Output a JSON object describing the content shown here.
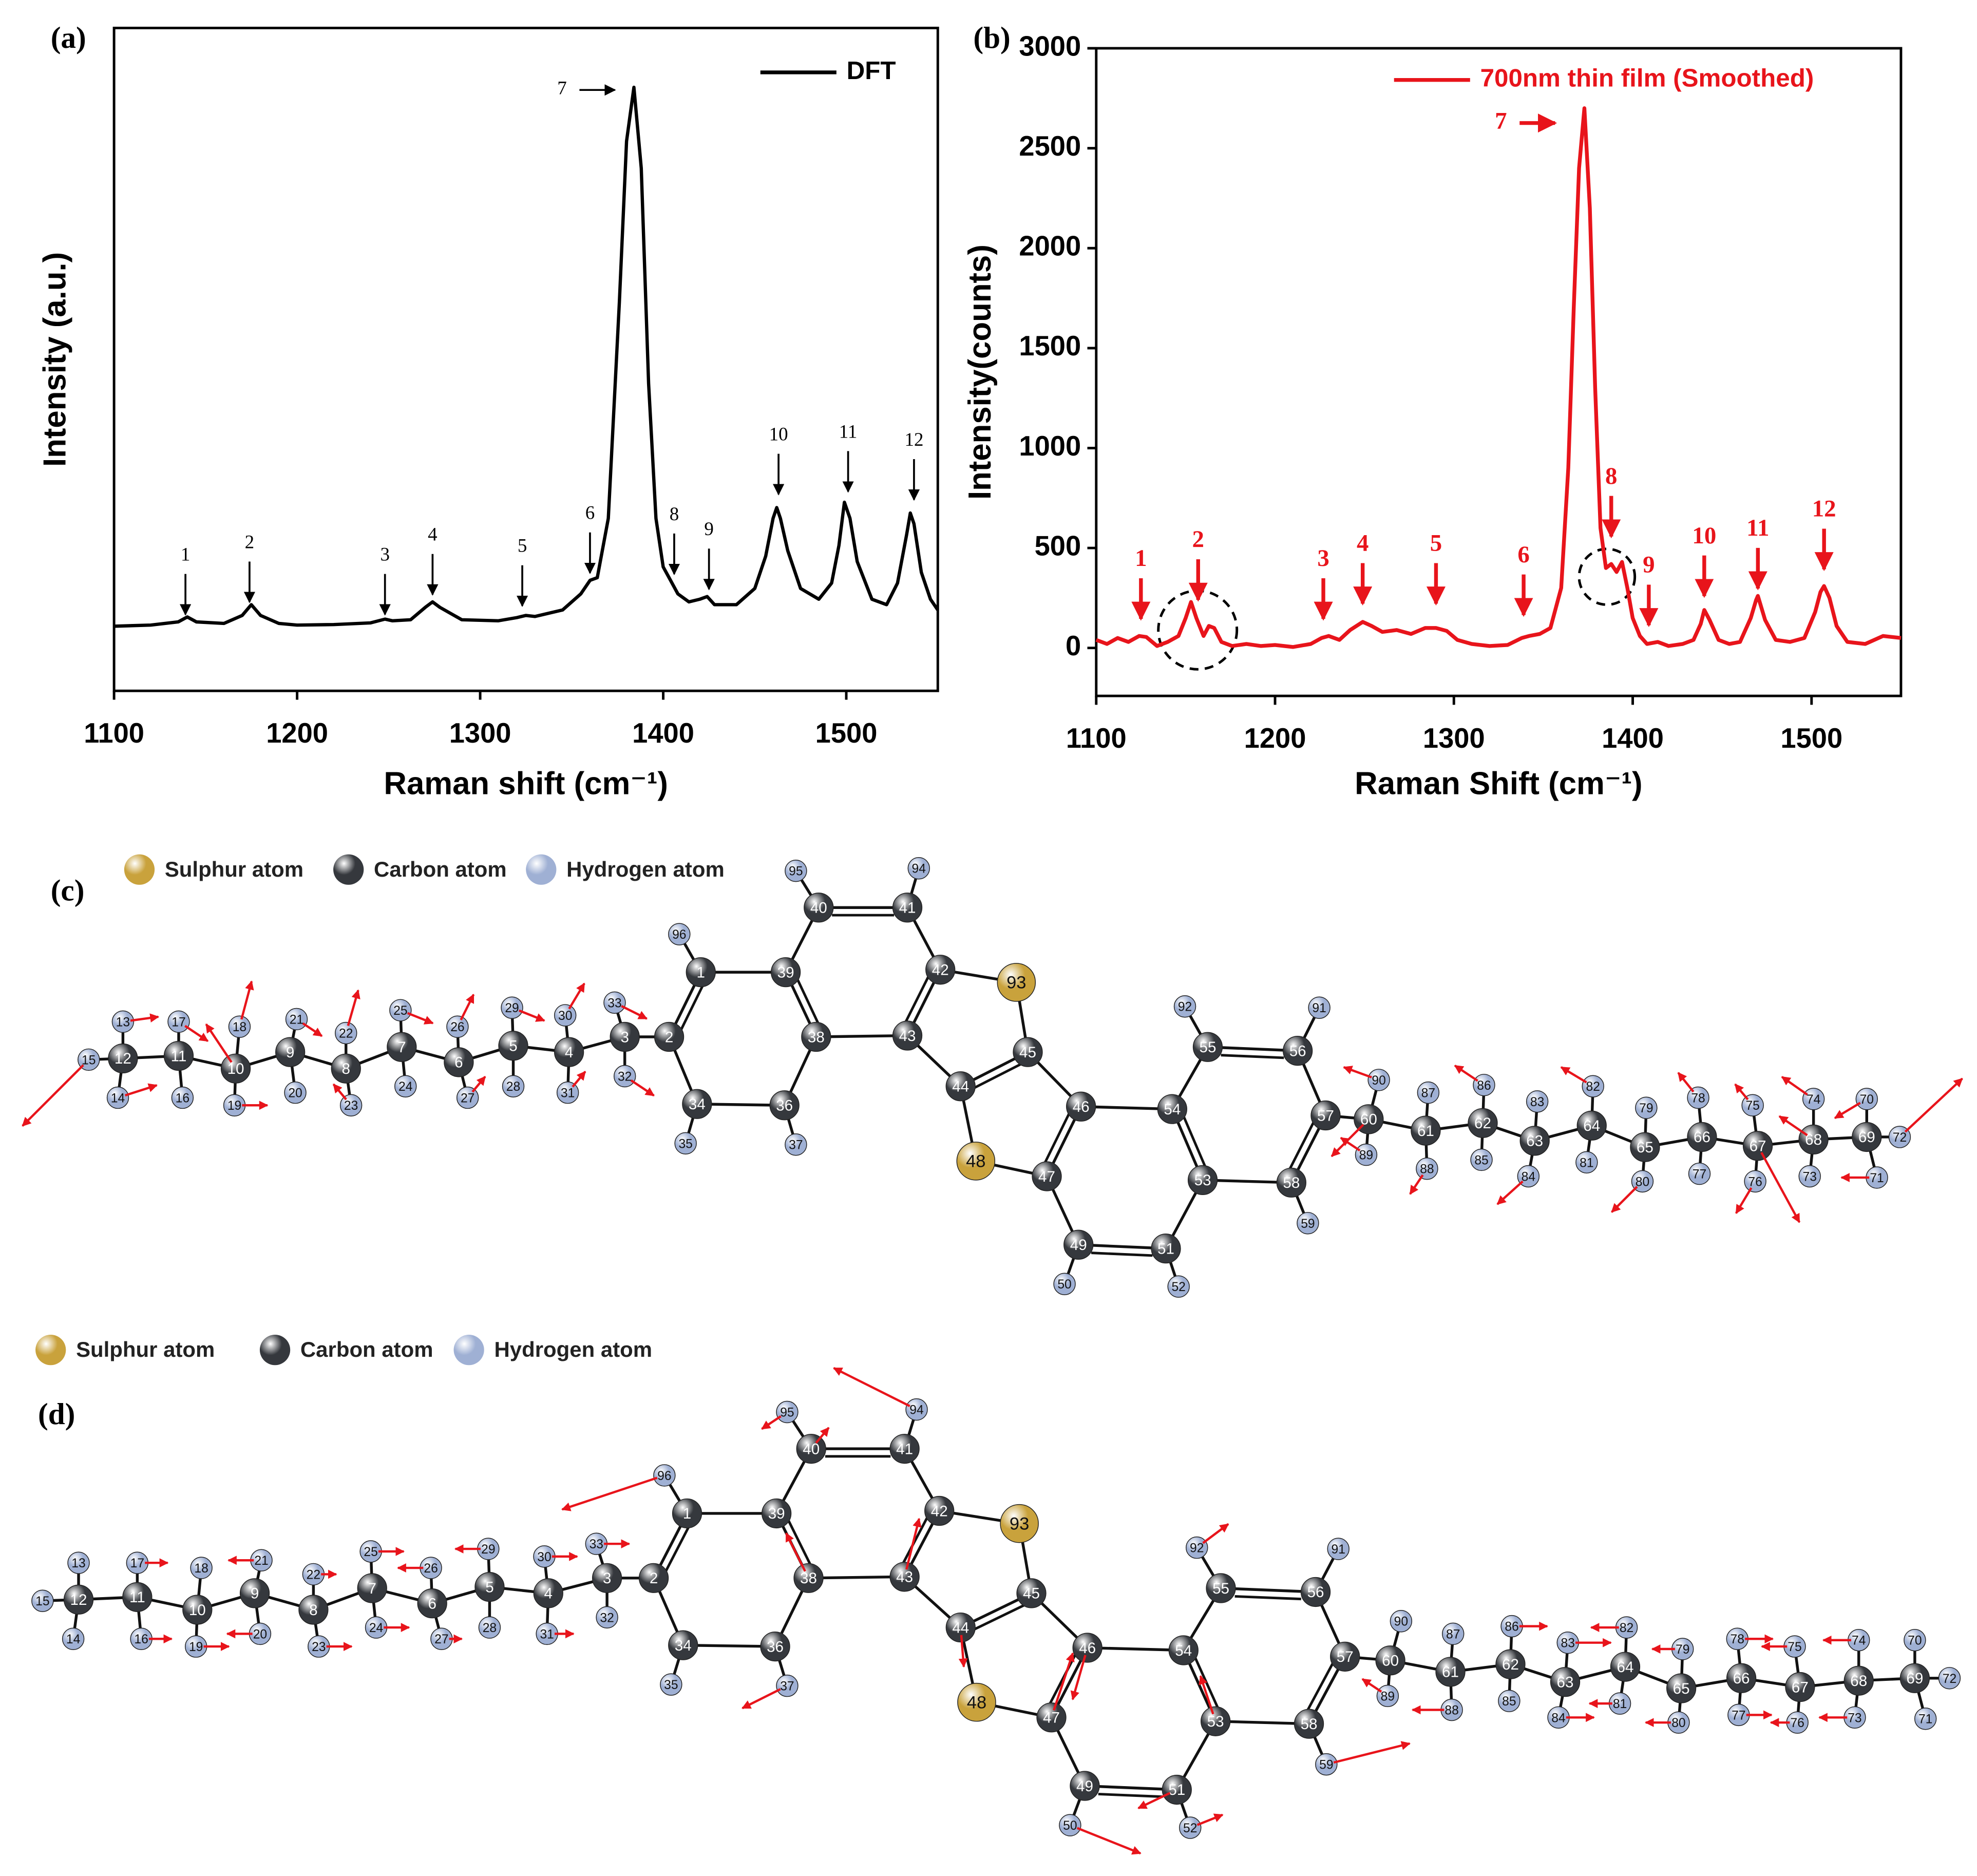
{
  "chart_data": [
    {
      "type": "line",
      "panel_label": "(a)",
      "x_label": "Raman shift (cm⁻¹)",
      "y_label": "Intensity (a.u.)",
      "xlim": [
        1100,
        1550
      ],
      "ylim": [
        -0.12,
        1.11
      ],
      "xticks": [
        1100,
        1200,
        1300,
        1400,
        1500
      ],
      "x": [
        1100,
        1120,
        1135,
        1140,
        1145,
        1160,
        1170,
        1175,
        1180,
        1190,
        1200,
        1220,
        1240,
        1248,
        1252,
        1262,
        1270,
        1274,
        1278,
        1290,
        1310,
        1320,
        1325,
        1330,
        1345,
        1355,
        1360,
        1364,
        1370,
        1376,
        1380,
        1384,
        1388,
        1392,
        1396,
        1400,
        1404,
        1408,
        1414,
        1420,
        1424,
        1428,
        1440,
        1450,
        1456,
        1460,
        1462,
        1464,
        1468,
        1475,
        1485,
        1492,
        1496,
        1499,
        1502,
        1506,
        1514,
        1522,
        1528,
        1533,
        1535,
        1537,
        1541,
        1546,
        1550
      ],
      "series": [
        {
          "name": "DFT",
          "color": "#000000",
          "values": [
            0,
            0.002,
            0.008,
            0.017,
            0.008,
            0.005,
            0.02,
            0.04,
            0.02,
            0.005,
            0.002,
            0.003,
            0.006,
            0.013,
            0.01,
            0.012,
            0.035,
            0.045,
            0.035,
            0.012,
            0.01,
            0.016,
            0.02,
            0.018,
            0.03,
            0.06,
            0.085,
            0.09,
            0.2,
            0.6,
            0.9,
            1.0,
            0.85,
            0.45,
            0.2,
            0.11,
            0.085,
            0.06,
            0.045,
            0.05,
            0.055,
            0.04,
            0.04,
            0.07,
            0.13,
            0.2,
            0.22,
            0.2,
            0.14,
            0.07,
            0.05,
            0.08,
            0.15,
            0.23,
            0.2,
            0.12,
            0.05,
            0.04,
            0.08,
            0.17,
            0.21,
            0.19,
            0.1,
            0.05,
            0.03
          ]
        }
      ],
      "annotation_color": "#000000",
      "annotations": [
        {
          "text": "1",
          "x": 1139,
          "y": 0.017,
          "arrow": "down"
        },
        {
          "text": "2",
          "x": 1174,
          "y": 0.04,
          "arrow": "down"
        },
        {
          "text": "3",
          "x": 1248,
          "y": 0.017,
          "arrow": "down"
        },
        {
          "text": "4",
          "x": 1274,
          "y": 0.054,
          "arrow": "down"
        },
        {
          "text": "5",
          "x": 1323,
          "y": 0.033,
          "arrow": "down"
        },
        {
          "text": "6",
          "x": 1360,
          "y": 0.094,
          "arrow": "down"
        },
        {
          "text": "7",
          "x": 1375,
          "y": 0.995,
          "arrow": "right"
        },
        {
          "text": "8",
          "x": 1406,
          "y": 0.092,
          "arrow": "down"
        },
        {
          "text": "9",
          "x": 1425,
          "y": 0.064,
          "arrow": "down"
        },
        {
          "text": "10",
          "x": 1463,
          "y": 0.24,
          "arrow": "down"
        },
        {
          "text": "11",
          "x": 1501,
          "y": 0.245,
          "arrow": "down"
        },
        {
          "text": "12",
          "x": 1537,
          "y": 0.23,
          "arrow": "down"
        }
      ]
    },
    {
      "type": "line",
      "panel_label": "(b)",
      "x_label": "Raman Shift (cm⁻¹)",
      "y_label": "Intensity(counts)",
      "xlim": [
        1100,
        1550
      ],
      "ylim": [
        -240,
        3000
      ],
      "xticks": [
        1100,
        1200,
        1300,
        1400,
        1500
      ],
      "yticks": [
        0,
        500,
        1000,
        1500,
        2000,
        2500,
        3000
      ],
      "x": [
        1100,
        1106,
        1112,
        1118,
        1124,
        1128,
        1134,
        1140,
        1146,
        1150,
        1153,
        1156,
        1160,
        1163,
        1166,
        1170,
        1176,
        1184,
        1192,
        1200,
        1210,
        1220,
        1226,
        1230,
        1236,
        1242,
        1249,
        1254,
        1260,
        1268,
        1276,
        1284,
        1290,
        1296,
        1302,
        1310,
        1320,
        1330,
        1338,
        1342,
        1348,
        1354,
        1360,
        1364,
        1367,
        1370,
        1373,
        1376,
        1379,
        1382,
        1385,
        1388,
        1391,
        1394,
        1397,
        1400,
        1404,
        1408,
        1414,
        1420,
        1428,
        1434,
        1438,
        1440,
        1443,
        1448,
        1454,
        1460,
        1466,
        1469,
        1470,
        1474,
        1480,
        1488,
        1496,
        1502,
        1505,
        1507,
        1510,
        1514,
        1520,
        1530,
        1540,
        1550
      ],
      "series": [
        {
          "name": "700nm thin film (Smoothed)",
          "color": "#e8141b",
          "values": [
            40,
            20,
            50,
            30,
            60,
            55,
            10,
            30,
            60,
            150,
            230,
            150,
            60,
            110,
            100,
            30,
            10,
            20,
            10,
            15,
            5,
            20,
            50,
            60,
            40,
            90,
            130,
            110,
            80,
            90,
            70,
            100,
            100,
            85,
            40,
            20,
            10,
            15,
            50,
            60,
            70,
            100,
            300,
            900,
            1700,
            2400,
            2700,
            2200,
            1300,
            600,
            400,
            420,
            380,
            430,
            300,
            150,
            60,
            20,
            30,
            10,
            20,
            40,
            120,
            190,
            140,
            40,
            20,
            30,
            150,
            240,
            260,
            140,
            40,
            30,
            50,
            180,
            280,
            310,
            250,
            110,
            30,
            20,
            60,
            50
          ]
        }
      ],
      "annotation_color": "#e8141b",
      "annotations": [
        {
          "text": "1",
          "x": 1125,
          "y": 133,
          "arrow": "down"
        },
        {
          "text": "2",
          "x": 1157,
          "y": 228,
          "arrow": "down"
        },
        {
          "text": "3",
          "x": 1227,
          "y": 133,
          "arrow": "down"
        },
        {
          "text": "4",
          "x": 1249,
          "y": 209,
          "arrow": "down"
        },
        {
          "text": "5",
          "x": 1290,
          "y": 209,
          "arrow": "down"
        },
        {
          "text": "6",
          "x": 1339,
          "y": 152,
          "arrow": "down"
        },
        {
          "text": "7",
          "x": 1358,
          "y": 2626,
          "arrow": "right"
        },
        {
          "text": "8",
          "x": 1388,
          "y": 545,
          "arrow": "down"
        },
        {
          "text": "9",
          "x": 1409,
          "y": 101,
          "arrow": "down"
        },
        {
          "text": "10",
          "x": 1440,
          "y": 247,
          "arrow": "down"
        },
        {
          "text": "11",
          "x": 1470,
          "y": 285,
          "arrow": "down"
        },
        {
          "text": "12",
          "x": 1507,
          "y": 381,
          "arrow": "down"
        }
      ]
    }
  ],
  "diagrams": [
    {
      "panel_label": "(c)",
      "legend": [
        {
          "label": "Sulphur atom",
          "color": "#c9a23c"
        },
        {
          "label": "Carbon atom",
          "color": "#35383d"
        },
        {
          "label": "Hydrogen atom",
          "color": "#9fb0d4"
        }
      ],
      "atoms": [
        1,
        2,
        3,
        4,
        5,
        6,
        7,
        8,
        9,
        10,
        11,
        12,
        13,
        14,
        15,
        16,
        17,
        18,
        19,
        20,
        21,
        22,
        23,
        24,
        25,
        26,
        27,
        28,
        29,
        30,
        31,
        32,
        33,
        34,
        35,
        36,
        37,
        38,
        39,
        40,
        41,
        42,
        43,
        44,
        45,
        46,
        47,
        48,
        49,
        50,
        51,
        52,
        53,
        54,
        55,
        56,
        57,
        58,
        59,
        60,
        61,
        62,
        63,
        64,
        65,
        66,
        67,
        68,
        69,
        70,
        71,
        72,
        73,
        74,
        75,
        76,
        77,
        78,
        79,
        80,
        81,
        82,
        83,
        84,
        85,
        86,
        87,
        88,
        89,
        90,
        91,
        92,
        93,
        94,
        95,
        96
      ]
    },
    {
      "panel_label": "(d)",
      "legend": [
        {
          "label": "Sulphur atom",
          "color": "#c9a23c"
        },
        {
          "label": "Carbon atom",
          "color": "#35383d"
        },
        {
          "label": "Hydrogen atom",
          "color": "#9fb0d4"
        }
      ],
      "atoms": [
        1,
        2,
        3,
        4,
        5,
        6,
        7,
        8,
        9,
        10,
        11,
        12,
        13,
        14,
        15,
        16,
        17,
        18,
        19,
        20,
        21,
        22,
        23,
        24,
        25,
        26,
        27,
        28,
        29,
        30,
        31,
        32,
        33,
        34,
        35,
        36,
        37,
        38,
        39,
        40,
        41,
        42,
        43,
        44,
        45,
        46,
        47,
        48,
        49,
        50,
        51,
        52,
        53,
        54,
        55,
        56,
        57,
        58,
        59,
        60,
        61,
        62,
        63,
        64,
        65,
        66,
        67,
        68,
        69,
        70,
        71,
        72,
        73,
        74,
        75,
        76,
        77,
        78,
        79,
        80,
        81,
        82,
        83,
        84,
        85,
        86,
        87,
        88,
        89,
        90,
        91,
        92,
        93,
        94,
        95,
        96
      ]
    }
  ]
}
